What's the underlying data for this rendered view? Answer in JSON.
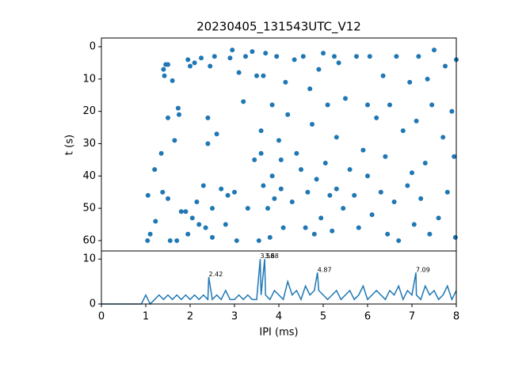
{
  "chart_data": [
    {
      "type": "scatter",
      "title": "20230405_131543UTC_V12",
      "ylabel": "t (s)",
      "color": "#1f77b4",
      "xlim": [
        0,
        8
      ],
      "ylim": [
        63.2,
        -2.7
      ],
      "yticks": [
        0,
        10,
        20,
        30,
        40,
        50,
        60
      ],
      "x": [
        1.04,
        1.1,
        1.05,
        1.2,
        1.22,
        1.35,
        1.38,
        1.4,
        1.45,
        1.5,
        1.42,
        1.5,
        1.55,
        1.6,
        1.5,
        1.65,
        1.7,
        1.73,
        1.75,
        1.8,
        1.9,
        1.95,
        2.0,
        1.95,
        2.1,
        2.05,
        2.15,
        2.2,
        2.25,
        2.3,
        2.35,
        2.4,
        2.4,
        2.45,
        2.5,
        2.5,
        2.55,
        2.6,
        2.7,
        2.8,
        2.85,
        2.9,
        2.95,
        3.0,
        3.05,
        3.1,
        3.2,
        3.25,
        3.3,
        3.4,
        3.5,
        3.45,
        3.55,
        3.6,
        3.6,
        3.65,
        3.7,
        3.65,
        3.75,
        3.8,
        3.85,
        3.85,
        3.9,
        3.95,
        4.0,
        4.05,
        4.05,
        4.1,
        4.15,
        4.2,
        4.3,
        4.35,
        4.4,
        4.5,
        4.55,
        4.6,
        4.65,
        4.7,
        4.75,
        4.8,
        4.85,
        4.9,
        4.95,
        5.0,
        5.05,
        5.1,
        5.15,
        5.2,
        5.25,
        5.3,
        5.3,
        5.35,
        5.45,
        5.5,
        5.6,
        5.7,
        5.75,
        5.8,
        5.9,
        6.0,
        6.0,
        6.05,
        6.1,
        6.2,
        6.3,
        6.35,
        6.4,
        6.45,
        6.5,
        6.6,
        6.65,
        6.7,
        6.8,
        6.9,
        6.95,
        7.0,
        7.05,
        7.1,
        7.15,
        7.2,
        7.3,
        7.35,
        7.4,
        7.45,
        7.5,
        7.6,
        7.7,
        7.75,
        7.8,
        7.9,
        7.95,
        8.0,
        7.98
      ],
      "y": [
        60,
        58,
        46,
        38,
        54,
        33,
        45,
        7,
        5.5,
        5.5,
        9,
        22,
        60,
        10.5,
        47,
        29,
        60,
        19,
        21,
        51,
        51,
        4,
        6,
        58,
        5,
        53,
        48,
        55,
        3.5,
        43,
        56,
        22,
        30,
        6,
        59,
        50,
        3,
        27,
        44,
        55,
        46,
        3.5,
        1,
        45,
        60,
        8,
        17,
        3,
        50,
        1.5,
        9,
        35,
        60,
        26,
        33,
        43,
        2,
        9,
        50,
        59,
        40,
        18,
        47,
        3,
        29,
        35,
        44,
        56,
        11,
        21,
        48,
        4,
        33,
        38,
        3,
        56,
        45,
        13,
        24,
        58,
        41,
        7,
        53,
        2,
        36,
        18,
        46,
        57,
        3,
        28,
        44,
        5,
        50,
        16,
        38,
        46,
        3,
        56,
        32,
        18,
        40,
        3,
        52,
        22,
        45,
        9,
        34,
        58,
        18,
        48,
        3,
        60,
        26,
        43,
        11,
        39,
        55,
        23,
        3,
        47,
        36,
        10,
        58,
        18,
        1,
        53,
        28,
        6,
        45,
        20,
        34,
        4,
        59
      ]
    },
    {
      "type": "line",
      "xlabel": "IPI (ms)",
      "color": "#1f77b4",
      "xlim": [
        0,
        8
      ],
      "ylim": [
        0,
        11.8
      ],
      "xticks": [
        0,
        1,
        2,
        3,
        4,
        5,
        6,
        7,
        8
      ],
      "yticks": [
        0,
        10
      ],
      "x": [
        0,
        0.1,
        0.2,
        0.3,
        0.4,
        0.5,
        0.6,
        0.7,
        0.8,
        0.9,
        1.0,
        1.1,
        1.2,
        1.3,
        1.4,
        1.5,
        1.6,
        1.7,
        1.8,
        1.9,
        2.0,
        2.1,
        2.2,
        2.3,
        2.4,
        2.42,
        2.5,
        2.6,
        2.7,
        2.8,
        2.9,
        3.0,
        3.1,
        3.2,
        3.3,
        3.4,
        3.5,
        3.58,
        3.6,
        3.68,
        3.7,
        3.8,
        3.9,
        4.0,
        4.1,
        4.2,
        4.3,
        4.4,
        4.5,
        4.6,
        4.7,
        4.8,
        4.87,
        4.9,
        5.0,
        5.1,
        5.2,
        5.3,
        5.4,
        5.5,
        5.6,
        5.7,
        5.8,
        5.9,
        6.0,
        6.1,
        6.2,
        6.3,
        6.4,
        6.5,
        6.6,
        6.7,
        6.8,
        6.9,
        7.0,
        7.09,
        7.1,
        7.2,
        7.3,
        7.4,
        7.5,
        7.6,
        7.7,
        7.8,
        7.9,
        8.0
      ],
      "values": [
        0,
        0,
        0,
        0,
        0,
        0,
        0,
        0,
        0,
        0,
        2,
        0,
        1,
        2,
        1,
        2,
        1,
        2,
        1,
        2,
        1,
        2,
        1,
        2,
        1,
        6,
        1,
        2,
        1,
        3,
        1,
        1,
        2,
        1,
        2,
        1,
        1,
        10,
        2,
        10,
        2,
        1,
        3,
        2,
        1,
        5,
        2,
        3,
        1,
        4,
        2,
        3,
        7,
        3,
        2,
        1,
        2,
        3,
        1,
        2,
        3,
        1,
        2,
        4,
        1,
        2,
        3,
        2,
        1,
        3,
        2,
        4,
        1,
        3,
        2,
        7,
        2,
        1,
        4,
        2,
        3,
        1,
        2,
        4,
        1,
        3
      ],
      "annotations": [
        {
          "x": 2.42,
          "y": 6
        },
        {
          "x": 3.58,
          "y": 10
        },
        {
          "x": 3.68,
          "y": 10
        },
        {
          "x": 4.87,
          "y": 7
        },
        {
          "x": 7.09,
          "y": 7
        }
      ]
    }
  ]
}
